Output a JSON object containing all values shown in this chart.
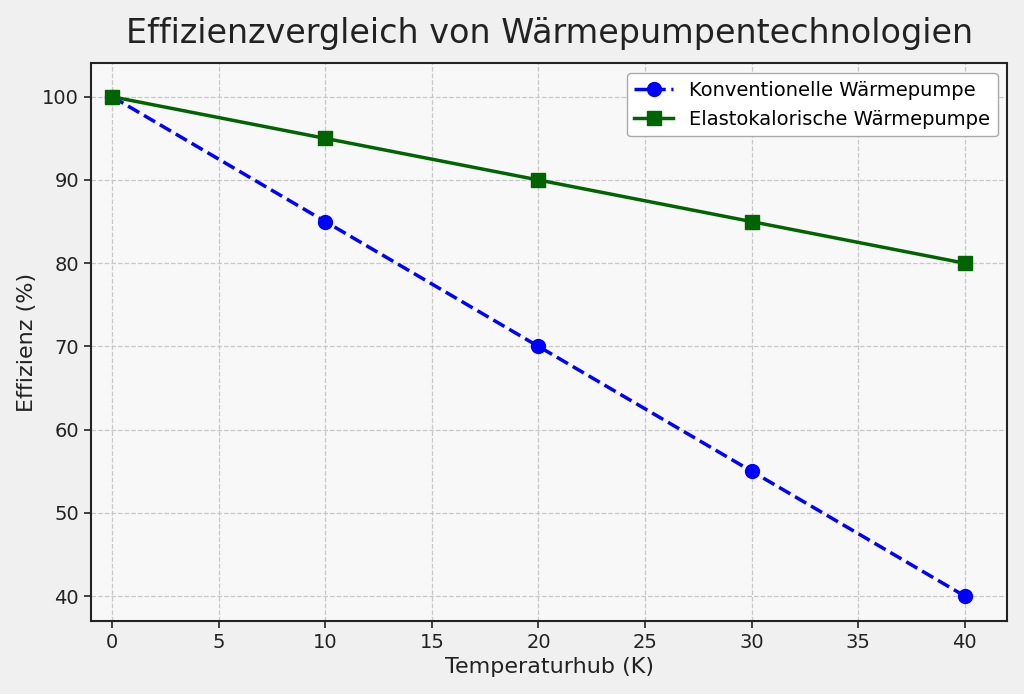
{
  "title": "Effizienzvergleich von Wärmepumpentechnologien",
  "xlabel": "Temperaturhub (K)",
  "ylabel": "Effizienz (%)",
  "x": [
    0,
    10,
    20,
    30,
    40
  ],
  "konventionell_y": [
    100,
    85,
    70,
    55,
    40
  ],
  "elastokalorisch_y": [
    100,
    95,
    90,
    85,
    80
  ],
  "konventionell_label": "Konventionelle Wärmepumpe",
  "elastokalorisch_label": "Elastokalorische Wärmepumpe",
  "konventionell_color": "#0000ff",
  "elastokalorisch_color": "#006400",
  "xlim": [
    -1,
    42
  ],
  "ylim": [
    37,
    104
  ],
  "xticks": [
    0,
    5,
    10,
    15,
    20,
    25,
    30,
    35,
    40
  ],
  "yticks": [
    40,
    50,
    60,
    70,
    80,
    90,
    100
  ],
  "title_fontsize": 24,
  "label_fontsize": 16,
  "tick_fontsize": 14,
  "legend_fontsize": 14,
  "fig_background_color": "#f0f0f0",
  "plot_background_color": "#f8f8f8",
  "grid_color": "#c8c8c8",
  "spine_color": "#222222",
  "marker_size": 10,
  "line_width": 2.5
}
